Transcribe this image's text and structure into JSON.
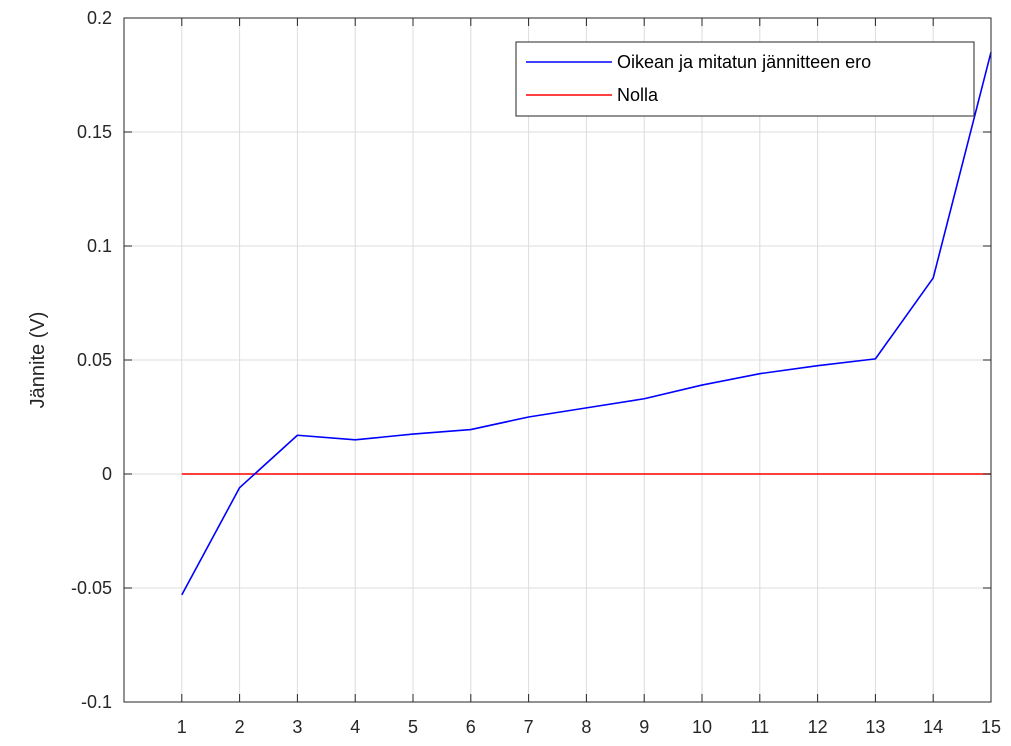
{
  "chart_data": {
    "type": "line",
    "title": "",
    "xlabel": "",
    "ylabel": "Jännite (V)",
    "xlim": [
      0,
      15
    ],
    "ylim": [
      -0.1,
      0.2
    ],
    "x_ticks": [
      1,
      2,
      3,
      4,
      5,
      6,
      7,
      8,
      9,
      10,
      11,
      12,
      13,
      14,
      15
    ],
    "y_ticks": [
      -0.1,
      -0.05,
      0,
      0.05,
      0.1,
      0.15,
      0.2
    ],
    "y_tick_labels": [
      "-0.1",
      "-0.05",
      "0",
      "0.05",
      "0.1",
      "0.15",
      "0.2"
    ],
    "grid": true,
    "legend_position": "top-right",
    "series": [
      {
        "name": "Oikean ja mitatun jännitteen ero",
        "color": "#0000ff",
        "x": [
          1,
          2,
          3,
          4,
          5,
          6,
          7,
          8,
          9,
          10,
          11,
          12,
          13,
          14,
          15
        ],
        "values": [
          -0.053,
          -0.006,
          0.017,
          0.015,
          0.0175,
          0.0195,
          0.025,
          0.029,
          0.033,
          0.039,
          0.044,
          0.0475,
          0.0505,
          0.086,
          0.185
        ]
      },
      {
        "name": "Nolla",
        "color": "#ff0000",
        "x": [
          1,
          15
        ],
        "values": [
          0,
          0
        ]
      }
    ]
  }
}
